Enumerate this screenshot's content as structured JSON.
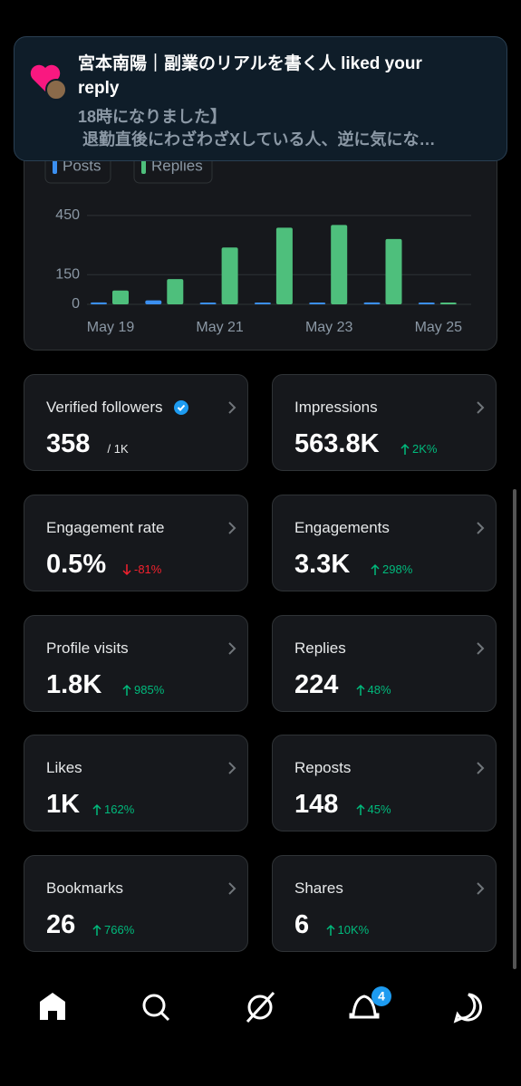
{
  "notification": {
    "title": "宮本南陽｜副業のリアルを書く人 liked your reply",
    "line1": "18時になりました】",
    "line2": "退勤直後にわざわざXしている人、逆に気にな…"
  },
  "chart_data": {
    "type": "bar",
    "categories": [
      "May 19",
      null,
      "May 21",
      null,
      "May 23",
      null,
      "May 25"
    ],
    "series": [
      {
        "name": "Posts",
        "color": "#3b8ff0",
        "values": [
          10,
          20,
          8,
          3,
          5,
          10,
          1
        ]
      },
      {
        "name": "Replies",
        "color": "#4ebf7c",
        "values": [
          70,
          128,
          288,
          388,
          402,
          331,
          2
        ]
      }
    ],
    "ylim": [
      0,
      500
    ],
    "yticks": [
      0,
      150,
      450
    ],
    "grid": true
  },
  "cards": [
    {
      "title": "Verified followers",
      "value": "358",
      "sub": "/ 1K"
    },
    {
      "title": "Impressions",
      "value": "563.8K",
      "change": "2K%"
    },
    {
      "title": "Engagement rate",
      "value": "0.5%",
      "change": "-81%"
    },
    {
      "title": "Engagements",
      "value": "3.3K",
      "change": "298%"
    },
    {
      "title": "Profile visits",
      "value": "1.8K",
      "change": "985%"
    },
    {
      "title": "Replies",
      "value": "224",
      "change": "48%"
    },
    {
      "title": "Likes",
      "value": "1K",
      "change": "162%"
    },
    {
      "title": "Reposts",
      "value": "148",
      "change": "45%"
    },
    {
      "title": "Bookmarks",
      "value": "26",
      "change": "766%"
    },
    {
      "title": "Shares",
      "value": "6",
      "change": "10K%"
    }
  ],
  "nav": {
    "badge": "4"
  }
}
